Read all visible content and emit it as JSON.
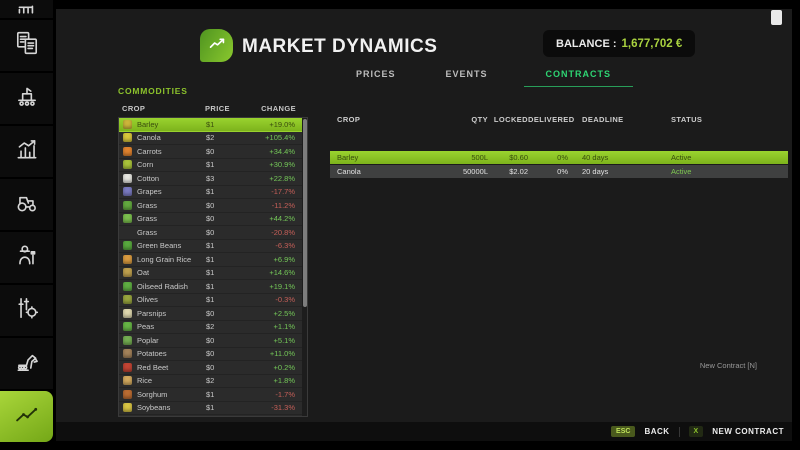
{
  "colors": {
    "accent": "#8cc22c",
    "selected_row": "#8bc324",
    "positive": "#74c758",
    "negative": "#c65f58",
    "tab_active": "#2ed573",
    "status_active": "#7ec850",
    "balance_value": "#a9d23f"
  },
  "sidebar": {
    "items": [
      {
        "id": "top-partial",
        "icon": "partial-icon",
        "active": false
      },
      {
        "id": "contracts-documents",
        "icon": "documents-icon",
        "active": false
      },
      {
        "id": "production",
        "icon": "production-icon",
        "active": false
      },
      {
        "id": "statistics",
        "icon": "statistics-icon",
        "active": false
      },
      {
        "id": "vehicles",
        "icon": "tractor-icon",
        "active": false
      },
      {
        "id": "farmer",
        "icon": "farmer-icon",
        "active": false
      },
      {
        "id": "settings",
        "icon": "settings-icon",
        "active": false
      },
      {
        "id": "construction",
        "icon": "excavator-icon",
        "active": false
      },
      {
        "id": "market-dynamics",
        "icon": "market-trend-icon",
        "active": true
      }
    ]
  },
  "header": {
    "title": "MARKET DYNAMICS",
    "balance_label": "BALANCE :",
    "balance_value": "1,677,702 €"
  },
  "tabs": [
    {
      "label": "PRICES",
      "active": false
    },
    {
      "label": "EVENTS",
      "active": false
    },
    {
      "label": "CONTRACTS",
      "active": true
    }
  ],
  "commodities": {
    "title": "COMMODITIES",
    "columns": [
      "CROP",
      "PRICE",
      "CHANGE"
    ],
    "rows": [
      {
        "name": "Barley",
        "price": "$1",
        "change": "+19.0%",
        "icon": "barley",
        "icon_color": "#cdb53a",
        "selected": true
      },
      {
        "name": "Canola",
        "price": "$2",
        "change": "+105.4%",
        "icon": "canola",
        "icon_color": "#d8c63c",
        "selected": false
      },
      {
        "name": "Carrots",
        "price": "$0",
        "change": "+34.4%",
        "icon": "carrots",
        "icon_color": "#e0832f",
        "selected": false
      },
      {
        "name": "Corn",
        "price": "$1",
        "change": "+30.9%",
        "icon": "corn",
        "icon_color": "#a8c23a",
        "selected": false
      },
      {
        "name": "Cotton",
        "price": "$3",
        "change": "+22.8%",
        "icon": "cotton",
        "icon_color": "#e6e6e0",
        "selected": false
      },
      {
        "name": "Grapes",
        "price": "$1",
        "change": "-17.7%",
        "icon": "grapes",
        "icon_color": "#7a7ac0",
        "selected": false
      },
      {
        "name": "Grass",
        "price": "$0",
        "change": "-11.2%",
        "icon": "grass",
        "icon_color": "#63a93f",
        "selected": false
      },
      {
        "name": "Grass",
        "price": "$0",
        "change": "+44.2%",
        "icon": "grass",
        "icon_color": "#7bbf4e",
        "selected": false
      },
      {
        "name": "Grass",
        "price": "$0",
        "change": "-20.8%",
        "icon": "grass",
        "icon_color": null,
        "selected": false
      },
      {
        "name": "Green Beans",
        "price": "$1",
        "change": "-6.3%",
        "icon": "green-beans",
        "icon_color": "#58a83e",
        "selected": false
      },
      {
        "name": "Long Grain Rice",
        "price": "$1",
        "change": "+6.9%",
        "icon": "long-grain-rice",
        "icon_color": "#d99b40",
        "selected": false
      },
      {
        "name": "Oat",
        "price": "$1",
        "change": "+14.6%",
        "icon": "oat",
        "icon_color": "#bfa04e",
        "selected": false
      },
      {
        "name": "Oilseed Radish",
        "price": "$1",
        "change": "+19.1%",
        "icon": "oilseed-radish",
        "icon_color": "#5fae42",
        "selected": false
      },
      {
        "name": "Olives",
        "price": "$1",
        "change": "-0.3%",
        "icon": "olives",
        "icon_color": "#97a43e",
        "selected": false
      },
      {
        "name": "Parsnips",
        "price": "$0",
        "change": "+2.5%",
        "icon": "parsnips",
        "icon_color": "#ded7ae",
        "selected": false
      },
      {
        "name": "Peas",
        "price": "$2",
        "change": "+1.1%",
        "icon": "peas",
        "icon_color": "#66b545",
        "selected": false
      },
      {
        "name": "Poplar",
        "price": "$0",
        "change": "+5.1%",
        "icon": "poplar",
        "icon_color": "#74ad52",
        "selected": false
      },
      {
        "name": "Potatoes",
        "price": "$0",
        "change": "+11.0%",
        "icon": "potatoes",
        "icon_color": "#a3825a",
        "selected": false
      },
      {
        "name": "Red Beet",
        "price": "$0",
        "change": "+0.2%",
        "icon": "red-beet",
        "icon_color": "#c24434",
        "selected": false
      },
      {
        "name": "Rice",
        "price": "$2",
        "change": "+1.8%",
        "icon": "rice",
        "icon_color": "#d2a95e",
        "selected": false
      },
      {
        "name": "Sorghum",
        "price": "$1",
        "change": "-1.7%",
        "icon": "sorghum",
        "icon_color": "#bb6c32",
        "selected": false
      },
      {
        "name": "Soybeans",
        "price": "$1",
        "change": "-31.3%",
        "icon": "soybeans",
        "icon_color": "#d8c444",
        "selected": false
      }
    ]
  },
  "contracts": {
    "columns": [
      "CROP",
      "QTY",
      "LOCKED",
      "DELIVERED",
      "DEADLINE",
      "STATUS"
    ],
    "rows": [
      {
        "crop": "Barley",
        "qty": "500L",
        "locked": "$0.60",
        "delivered": "0%",
        "deadline": "40 days",
        "status": "Active",
        "selected": true
      },
      {
        "crop": "Canola",
        "qty": "50000L",
        "locked": "$2.02",
        "delivered": "0%",
        "deadline": "20 days",
        "status": "Active",
        "selected": false
      }
    ],
    "hint": "New Contract [N]"
  },
  "footer": {
    "actions": [
      {
        "key": "ESC",
        "label": "BACK"
      },
      {
        "key": "X",
        "label": "NEW CONTRACT"
      }
    ]
  }
}
